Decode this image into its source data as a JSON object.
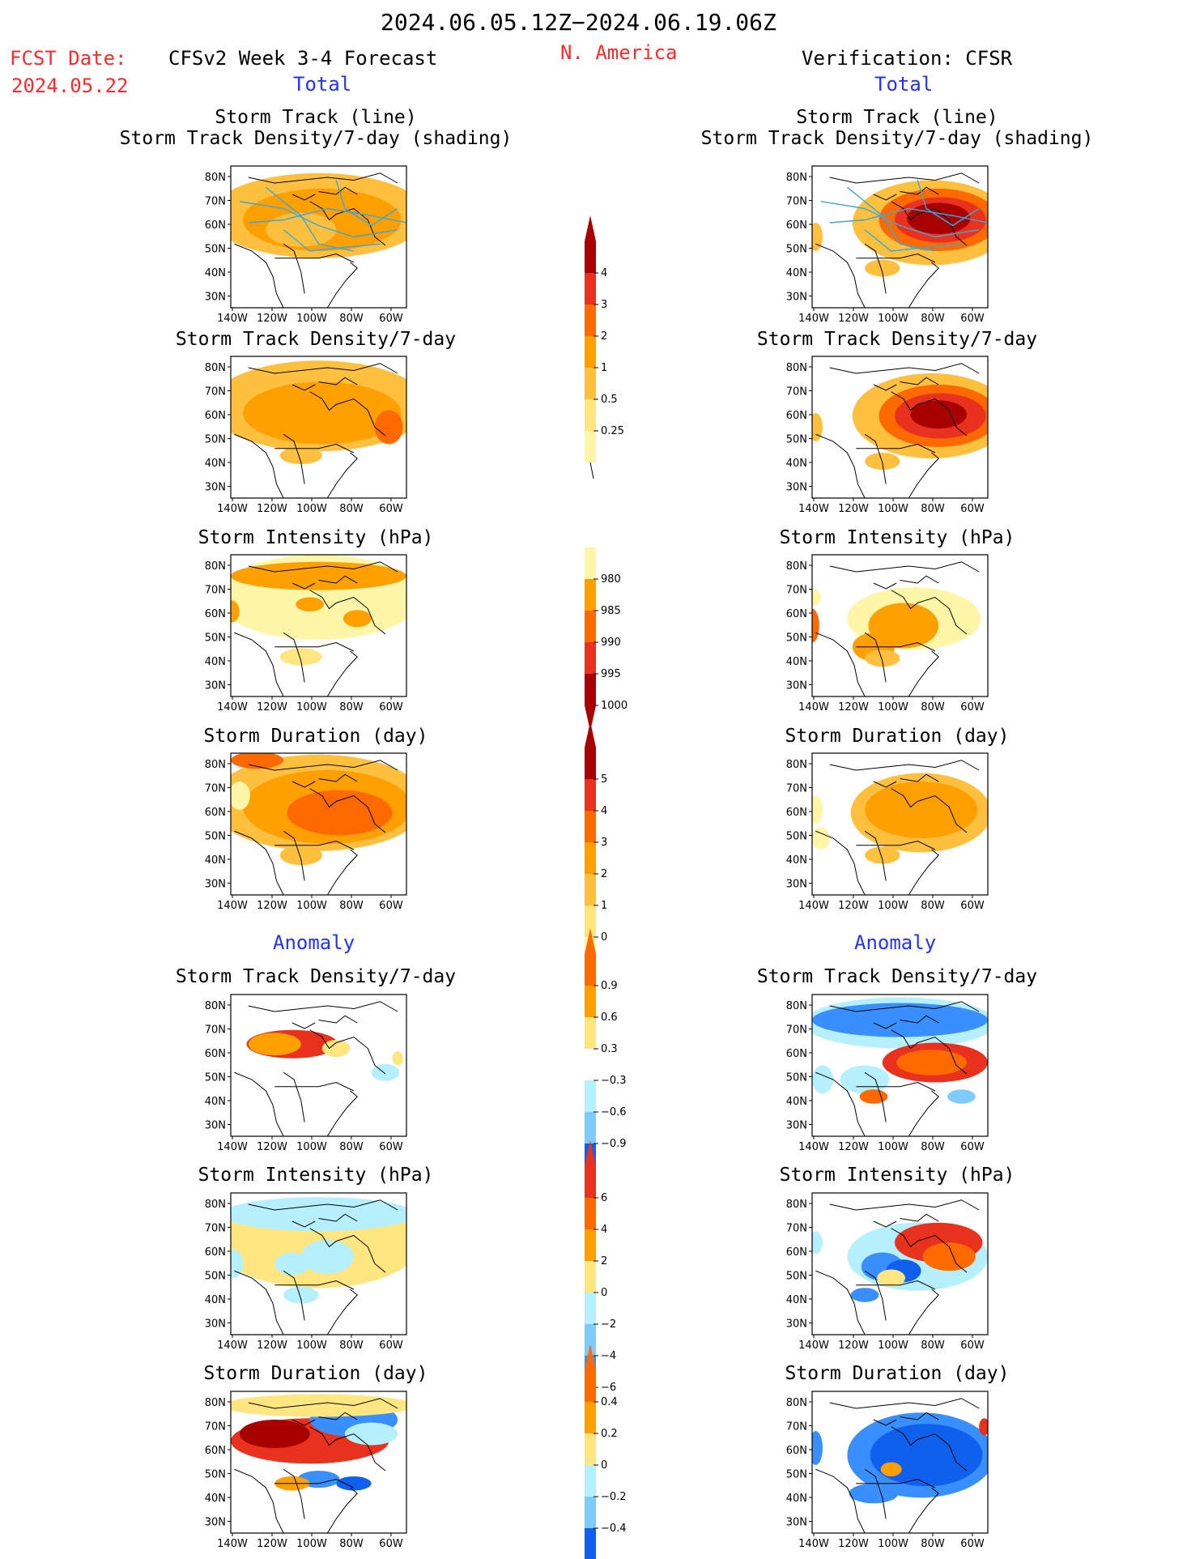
{
  "header": {
    "period": "2024.06.05.12Z−2024.06.19.06Z",
    "fcst_label": "FCST Date:",
    "fcst_date": "2024.05.22",
    "model": "CFSv2 Week 3-4 Forecast",
    "region": "N. America",
    "verification": "Verification: CFSR"
  },
  "sections": {
    "total": "Total",
    "anomaly": "Anomaly"
  },
  "panel_titles": {
    "track_line": "Storm Track (line)",
    "track_shading": "Storm Track Density/7-day (shading)",
    "density": "Storm Track Density/7-day",
    "intensity": "Storm Intensity (hPa)",
    "duration": "Storm Duration (day)"
  },
  "axes": {
    "lat_labels": [
      "80N",
      "70N",
      "60N",
      "50N",
      "40N",
      "30N"
    ],
    "lon_labels": [
      "140W",
      "120W",
      "100W",
      "80W",
      "60W"
    ]
  },
  "colorbars": {
    "density_total": [
      "4",
      "3",
      "2",
      "1",
      "0.5",
      "0.25"
    ],
    "intensity_total": [
      "1000",
      "995",
      "990",
      "985",
      "980"
    ],
    "duration_total": [
      "5",
      "4",
      "3",
      "2",
      "1",
      "0"
    ],
    "density_anom": [
      "0.9",
      "0.6",
      "0.3",
      "−0.3",
      "−0.6",
      "−0.9"
    ],
    "intensity_anom": [
      "6",
      "4",
      "2",
      "0",
      "−2",
      "−4",
      "−6"
    ],
    "duration_anom": [
      "0.4",
      "0.2",
      "0",
      "−0.2",
      "−0.4"
    ]
  },
  "colors": {
    "pale": "#fff6a8",
    "yellow": "#ffe680",
    "lorange": "#ffc040",
    "orange": "#ff9f00",
    "dorange": "#ff6a00",
    "red": "#e8321e",
    "dred": "#a80000",
    "lblue": "#b6f0ff",
    "mblue": "#7fcbff",
    "blue": "#3a8fff",
    "dblue": "#1060ee",
    "track": "#3aa8d8"
  }
}
